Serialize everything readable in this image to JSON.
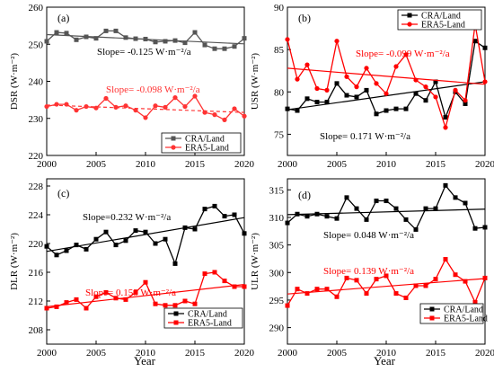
{
  "figure": {
    "xlabel_bottom": "Year"
  },
  "chart_data": [
    {
      "type": "line",
      "panel_label": "(a)",
      "ylabel": "DSR (W·m⁻²)",
      "xlabel": "",
      "xlim": [
        2000,
        2020
      ],
      "ylim": [
        220,
        260
      ],
      "xticks": [
        2000,
        2005,
        2010,
        2015,
        2020
      ],
      "yticks": [
        220,
        230,
        240,
        250,
        260
      ],
      "legend_position": "bottom-right",
      "x": [
        2000,
        2001,
        2002,
        2003,
        2004,
        2005,
        2006,
        2007,
        2008,
        2009,
        2010,
        2011,
        2012,
        2013,
        2014,
        2015,
        2016,
        2017,
        2018,
        2019,
        2020
      ],
      "series": [
        {
          "name": "CRA/Land",
          "color": "#555555",
          "marker": "square",
          "trend_style": "solid",
          "values": [
            250.8,
            253.2,
            253.0,
            251.2,
            252.0,
            251.6,
            253.6,
            253.6,
            251.8,
            251.5,
            251.4,
            250.6,
            250.8,
            251.0,
            250.4,
            253.2,
            249.8,
            248.8,
            248.8,
            249.4,
            251.6
          ],
          "trend": [
            252.6,
            250.1
          ],
          "slope_label": "Slope= -0.125 W·m⁻²/a"
        },
        {
          "name": "ERA5-Land",
          "color": "#ff3333",
          "marker": "circle",
          "trend_style": "dashed",
          "values": [
            233.2,
            233.8,
            233.8,
            232.2,
            233.2,
            232.8,
            235.4,
            233.0,
            233.4,
            232.2,
            230.2,
            233.4,
            233.0,
            235.6,
            233.2,
            236.0,
            231.6,
            231.0,
            229.6,
            232.6,
            230.6
          ],
          "trend": [
            233.6,
            231.6
          ],
          "slope_label": "Slope= -0.098 W·m⁻²/a"
        }
      ]
    },
    {
      "type": "line",
      "panel_label": "(b)",
      "ylabel": "USR (W·m⁻²)",
      "xlabel": "",
      "xlim": [
        2000,
        2020
      ],
      "ylim": [
        72.5,
        90
      ],
      "xticks": [
        2000,
        2005,
        2010,
        2015,
        2020
      ],
      "yticks": [
        75,
        80,
        85,
        90
      ],
      "legend_position": "top-right",
      "x": [
        2000,
        2001,
        2002,
        2003,
        2004,
        2005,
        2006,
        2007,
        2008,
        2009,
        2010,
        2011,
        2012,
        2013,
        2014,
        2015,
        2016,
        2017,
        2018,
        2019,
        2020
      ],
      "series": [
        {
          "name": "CRA/Land",
          "color": "#000000",
          "marker": "square",
          "trend_style": "solid",
          "values": [
            78.0,
            77.8,
            79.2,
            78.8,
            78.8,
            81.0,
            79.6,
            79.4,
            80.2,
            77.4,
            77.8,
            78.0,
            78.0,
            79.8,
            79.0,
            81.2,
            77.0,
            80.0,
            78.6,
            86.0,
            85.2
          ],
          "trend": [
            77.9,
            81.2
          ],
          "slope_label": "Slope= 0.171 W·m⁻²/a"
        },
        {
          "name": "ERA5-Land",
          "color": "#ff0000",
          "marker": "circle",
          "trend_style": "solid",
          "values": [
            86.2,
            81.5,
            83.2,
            80.4,
            80.2,
            86.0,
            81.8,
            80.6,
            82.8,
            81.0,
            79.8,
            83.0,
            84.4,
            81.4,
            80.6,
            79.4,
            75.8,
            80.2,
            79.0,
            88.0,
            81.2
          ],
          "trend": [
            82.8,
            80.9
          ],
          "slope_label": "Slope= -0.099 W·m⁻²/a"
        }
      ]
    },
    {
      "type": "line",
      "panel_label": "(c)",
      "ylabel": "DLR (W·m⁻²)",
      "xlabel": "",
      "xlim": [
        2000,
        2020
      ],
      "ylim": [
        206,
        229
      ],
      "xticks": [
        2000,
        2005,
        2010,
        2015,
        2020
      ],
      "yticks": [
        208,
        212,
        216,
        220,
        224,
        228
      ],
      "legend_position": "bottom-right",
      "x": [
        2000,
        2001,
        2002,
        2003,
        2004,
        2005,
        2006,
        2007,
        2008,
        2009,
        2010,
        2011,
        2012,
        2013,
        2014,
        2015,
        2016,
        2017,
        2018,
        2019,
        2020
      ],
      "series": [
        {
          "name": "CRA/Land",
          "color": "#000000",
          "marker": "square",
          "trend_style": "solid",
          "values": [
            219.6,
            218.4,
            219.0,
            219.8,
            219.2,
            220.6,
            221.6,
            219.8,
            220.4,
            221.8,
            221.6,
            220.0,
            220.6,
            217.2,
            222.2,
            222.0,
            224.8,
            225.2,
            223.8,
            224.0,
            221.4
          ],
          "trend": [
            218.9,
            223.6
          ],
          "slope_label": "Slope=0.232 W·m⁻²/a"
        },
        {
          "name": "ERA5-Land",
          "color": "#ff0000",
          "marker": "square",
          "trend_style": "solid",
          "values": [
            211.0,
            211.2,
            211.8,
            212.2,
            211.0,
            212.6,
            213.2,
            212.4,
            212.2,
            213.2,
            214.6,
            211.6,
            211.4,
            211.4,
            212.0,
            211.6,
            215.8,
            216.0,
            214.8,
            214.0,
            214.0
          ],
          "trend": [
            211.2,
            214.3
          ],
          "slope_label": "Slope= 0.155 W·m⁻²/a"
        }
      ]
    },
    {
      "type": "line",
      "panel_label": "(d)",
      "ylabel": "ULR (W·m⁻²)",
      "xlabel": "",
      "xlim": [
        2000,
        2020
      ],
      "ylim": [
        287,
        317
      ],
      "xticks": [
        2000,
        2005,
        2010,
        2015,
        2020
      ],
      "yticks": [
        290,
        295,
        300,
        305,
        310,
        315
      ],
      "legend_position": "bottom-right",
      "x": [
        2000,
        2001,
        2002,
        2003,
        2004,
        2005,
        2006,
        2007,
        2008,
        2009,
        2010,
        2011,
        2012,
        2013,
        2014,
        2015,
        2016,
        2017,
        2018,
        2019,
        2020
      ],
      "series": [
        {
          "name": "CRA/Land",
          "color": "#000000",
          "marker": "square",
          "trend_style": "solid",
          "values": [
            309.0,
            310.6,
            310.2,
            310.6,
            310.2,
            309.8,
            313.6,
            311.6,
            309.6,
            313.0,
            313.0,
            311.6,
            309.6,
            307.8,
            311.6,
            311.6,
            315.8,
            313.6,
            312.6,
            308.0,
            308.2
          ],
          "trend": [
            310.5,
            311.5
          ],
          "slope_label": "Slope= 0.048 W·m⁻²/a"
        },
        {
          "name": "ERA5-Land",
          "color": "#ff0000",
          "marker": "square",
          "trend_style": "solid",
          "values": [
            294.0,
            297.0,
            296.2,
            297.0,
            297.0,
            295.6,
            299.0,
            298.6,
            296.2,
            298.8,
            299.4,
            296.2,
            295.4,
            297.6,
            297.6,
            298.8,
            302.4,
            299.6,
            298.4,
            294.6,
            299.0
          ],
          "trend": [
            296.1,
            298.9
          ],
          "slope_label": "Slope= 0.139 W·m⁻²/a"
        }
      ]
    }
  ]
}
